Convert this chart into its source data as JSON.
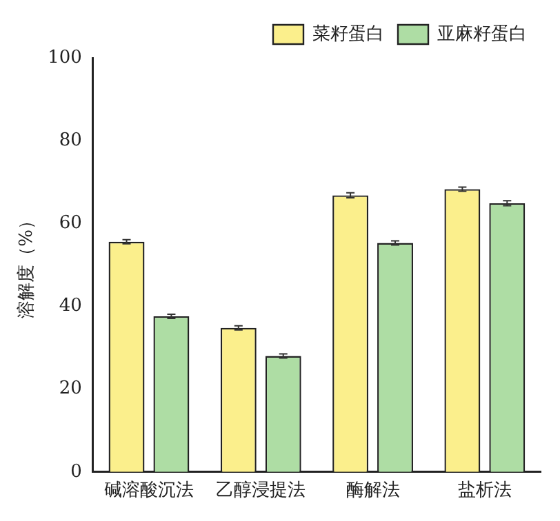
{
  "chart_data": {
    "type": "bar",
    "ylabel": "溶解度（%）",
    "categories": [
      "碱溶酸沉法",
      "乙醇浸提法",
      "酶解法",
      "盐析法"
    ],
    "series": [
      {
        "name": "菜籽蛋白",
        "color": "#fbef8c",
        "values": [
          55.6,
          34.8,
          66.8,
          68.3
        ],
        "errors": [
          0.5,
          0.5,
          0.6,
          0.5
        ]
      },
      {
        "name": "亚麻籽蛋白",
        "color": "#aedda4",
        "values": [
          37.6,
          28.0,
          55.3,
          64.9
        ],
        "errors": [
          0.5,
          0.5,
          0.5,
          0.6
        ]
      }
    ],
    "ylim": [
      0,
      100
    ],
    "yticks": [
      0,
      20,
      40,
      60,
      80,
      100
    ],
    "grid": false,
    "legend": "top right"
  }
}
